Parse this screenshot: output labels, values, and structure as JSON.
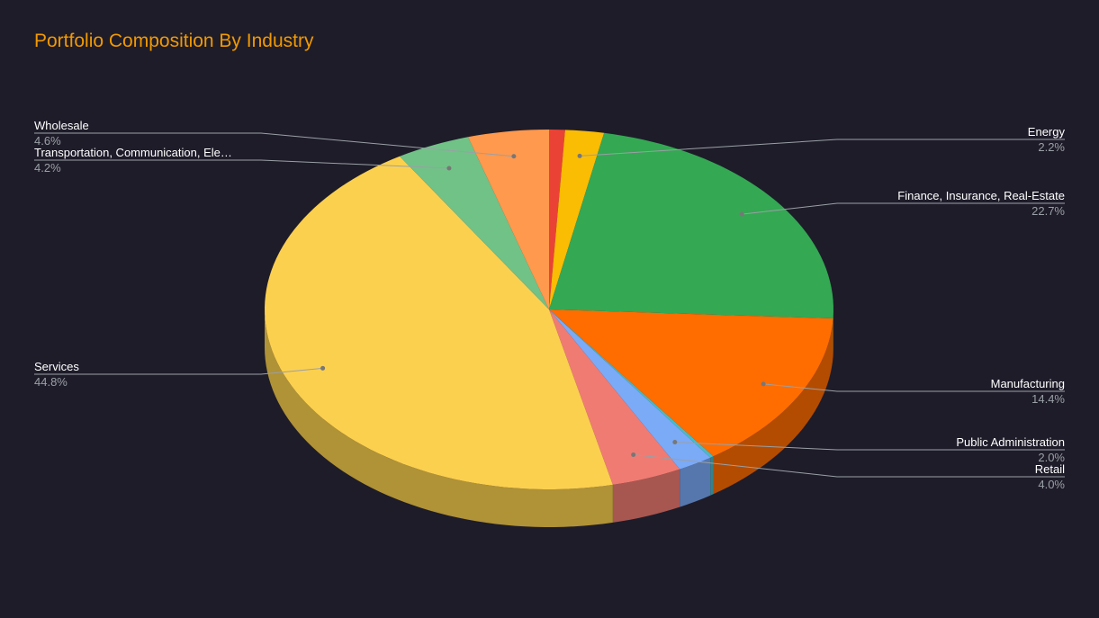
{
  "chart_data": {
    "type": "pie",
    "title": "Portfolio Composition By Industry",
    "categories": [
      null,
      "Energy",
      "Finance, Insurance, Real-Estate",
      "Manufacturing",
      null,
      "Public Administration",
      "Retail",
      "Services",
      "Transportation, Communication, Ele…",
      "Wholesale"
    ],
    "values": [
      0.9,
      2.2,
      22.7,
      14.4,
      0.2,
      2.0,
      4.0,
      44.8,
      4.2,
      4.6
    ],
    "value_labels": [
      null,
      "2.2%",
      "22.7%",
      "14.4%",
      null,
      "2.0%",
      "4.0%",
      "44.8%",
      "4.2%",
      "4.6%"
    ],
    "colors": [
      "#ea4335",
      "#fbbc04",
      "#34a853",
      "#ff6d01",
      "#46bdc6",
      "#7baaf7",
      "#f07b72",
      "#fcd04f",
      "#71c287",
      "#ff994d"
    ]
  }
}
